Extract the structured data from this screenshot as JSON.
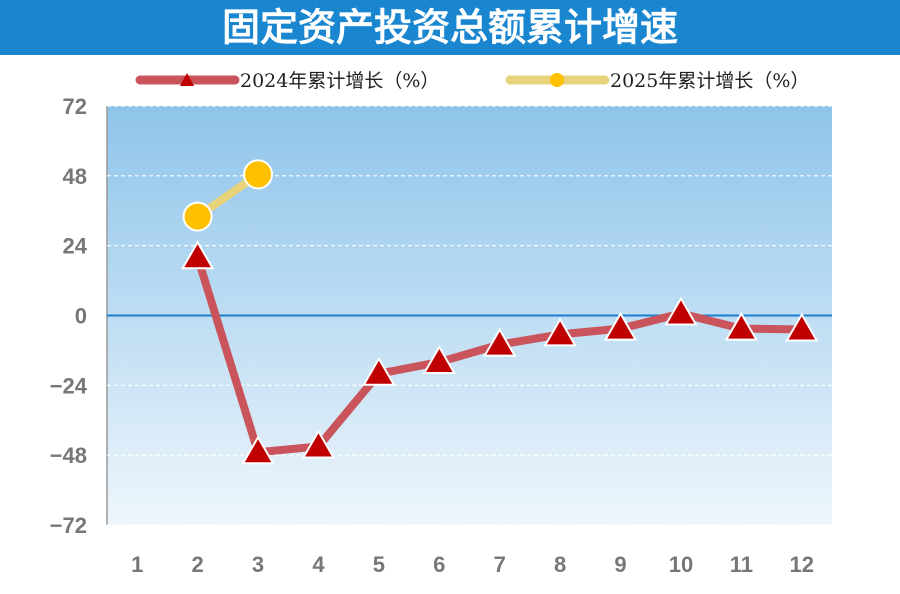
{
  "chart_data": {
    "type": "line",
    "title": "固定资产投资总额累计增速",
    "categories": [
      "1",
      "2",
      "3",
      "4",
      "5",
      "6",
      "7",
      "8",
      "9",
      "10",
      "11",
      "12"
    ],
    "series": [
      {
        "name": "2024年累计增长（%）",
        "color": "#c9545b",
        "marker_color": "#c00000",
        "marker": "triangle",
        "values": [
          null,
          20,
          -47,
          -45,
          -20,
          -16,
          -10,
          -6.5,
          -4.5,
          0.7,
          -4.5,
          -4.8
        ]
      },
      {
        "name": "2025年累计增长（%）",
        "color": "#e9d37a",
        "marker_color": "#ffc000",
        "marker": "circle",
        "values": [
          null,
          34,
          48.5,
          null,
          null,
          null,
          null,
          null,
          null,
          null,
          null,
          null
        ]
      }
    ],
    "ylim": [
      -72,
      72
    ],
    "yticks": [
      {
        "value": -72,
        "label": "−72"
      },
      {
        "value": -48,
        "label": "−48"
      },
      {
        "value": -24,
        "label": "−24"
      },
      0,
      24,
      48,
      72
    ],
    "grid": true,
    "legend": "top"
  }
}
